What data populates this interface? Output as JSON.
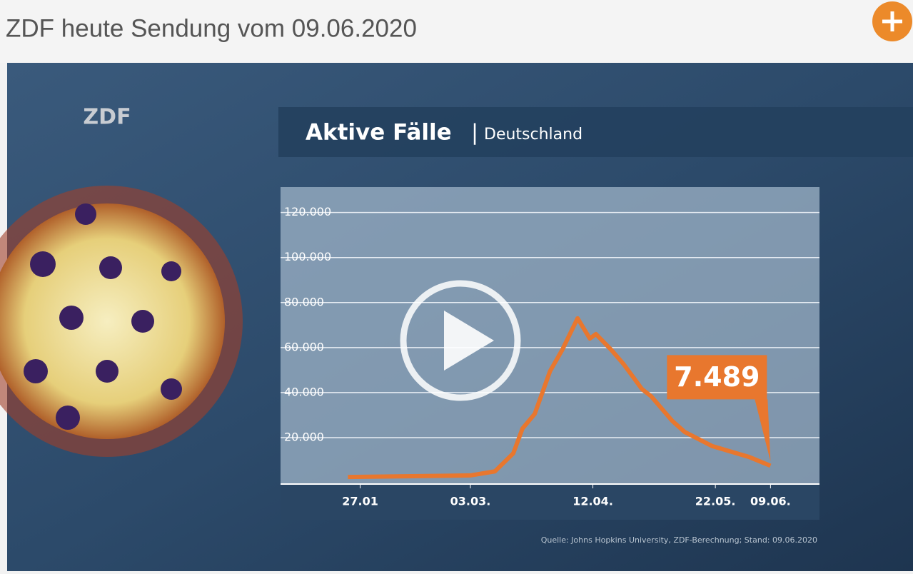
{
  "header": {
    "title": "ZDF heute Sendung vom 09.06.2020"
  },
  "video": {
    "logo": "ZDF"
  },
  "chart_data": {
    "type": "line",
    "title": "Aktive Fälle",
    "subtitle": "Deutschland",
    "source": "Quelle: Johns Hopkins University, ZDF-Berechnung; Stand: 09.06.2020",
    "x": [
      -4,
      36,
      44,
      50,
      53,
      57,
      62,
      66,
      71,
      75,
      77,
      82,
      86,
      92,
      95,
      102,
      106,
      115,
      127,
      134
    ],
    "values": [
      2500,
      3200,
      5000,
      13000,
      24000,
      30500,
      49500,
      59000,
      73000,
      64000,
      66000,
      59000,
      52700,
      41600,
      38400,
      27300,
      22500,
      16200,
      11400,
      7489
    ],
    "value_labels": [
      null,
      null,
      null,
      null,
      null,
      null,
      null,
      null,
      null,
      null,
      null,
      null,
      null,
      null,
      null,
      null,
      null,
      null,
      null,
      "7.489"
    ],
    "color": "#e8772e",
    "xlim": [
      -26,
      150
    ],
    "xticks": [
      {
        "value": 0,
        "label": "27.01"
      },
      {
        "value": 36,
        "label": "03.03."
      },
      {
        "value": 76,
        "label": "12.04."
      },
      {
        "value": 116,
        "label": "22.05."
      },
      {
        "value": 134,
        "label": "09.06."
      }
    ],
    "ylim": [
      0,
      131000
    ],
    "yticks": [
      {
        "value": 20000,
        "label": "20.000"
      },
      {
        "value": 40000,
        "label": "40.000"
      },
      {
        "value": 60000,
        "label": "60.000"
      },
      {
        "value": 80000,
        "label": "80.000"
      },
      {
        "value": 100000,
        "label": "100.000"
      },
      {
        "value": 120000,
        "label": "120.000"
      }
    ],
    "grid": true
  }
}
